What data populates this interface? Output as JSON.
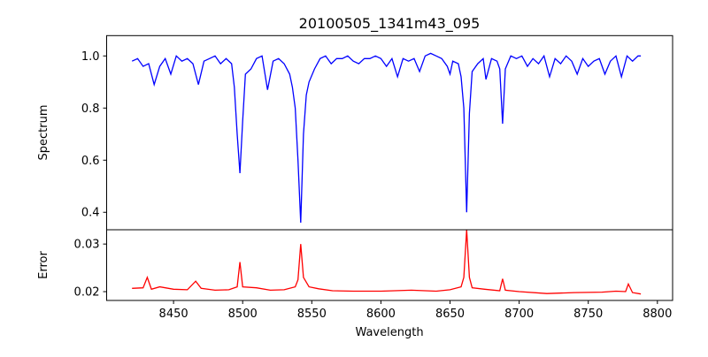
{
  "chart_data": [
    {
      "type": "line",
      "title": "20100505_1341m43_095",
      "xlabel": "",
      "ylabel": "Spectrum",
      "xlim": [
        8401.6,
        8811
      ],
      "ylim": [
        0.333,
        1.078
      ],
      "yticks": [
        "0.4",
        "0.6",
        "0.8",
        "1.0"
      ],
      "grid": false,
      "color": "#0000ff",
      "x": [
        8420,
        8424,
        8428,
        8432,
        8436,
        8440,
        8444,
        8448,
        8452,
        8456,
        8460,
        8464,
        8468,
        8472,
        8476,
        8480,
        8484,
        8488,
        8492,
        8494,
        8496,
        8498,
        8500,
        8502,
        8506,
        8510,
        8514,
        8518,
        8522,
        8526,
        8530,
        8534,
        8536,
        8538,
        8540,
        8542,
        8544,
        8546,
        8548,
        8552,
        8556,
        8560,
        8564,
        8568,
        8572,
        8576,
        8580,
        8584,
        8588,
        8592,
        8596,
        8600,
        8604,
        8608,
        8612,
        8616,
        8620,
        8624,
        8628,
        8632,
        8636,
        8640,
        8644,
        8648,
        8650,
        8652,
        8656,
        8658,
        8660,
        8662,
        8664,
        8666,
        8670,
        8674,
        8676,
        8680,
        8684,
        8686,
        8688,
        8690,
        8694,
        8698,
        8702,
        8706,
        8710,
        8714,
        8718,
        8722,
        8726,
        8730,
        8734,
        8738,
        8742,
        8746,
        8750,
        8754,
        8758,
        8762,
        8766,
        8770,
        8774,
        8778,
        8782,
        8786,
        8788
      ],
      "y": [
        0.98,
        0.99,
        0.96,
        0.97,
        0.89,
        0.96,
        0.99,
        0.93,
        1.0,
        0.98,
        0.99,
        0.97,
        0.89,
        0.98,
        0.99,
        1.0,
        0.97,
        0.99,
        0.97,
        0.88,
        0.7,
        0.55,
        0.75,
        0.93,
        0.95,
        0.99,
        1.0,
        0.87,
        0.98,
        0.99,
        0.97,
        0.93,
        0.88,
        0.8,
        0.6,
        0.36,
        0.7,
        0.85,
        0.9,
        0.95,
        0.99,
        1.0,
        0.97,
        0.99,
        0.99,
        1.0,
        0.98,
        0.97,
        0.99,
        0.99,
        1.0,
        0.99,
        0.96,
        0.99,
        0.92,
        0.99,
        0.98,
        0.99,
        0.94,
        1.0,
        1.01,
        1.0,
        0.99,
        0.96,
        0.93,
        0.98,
        0.97,
        0.92,
        0.8,
        0.4,
        0.78,
        0.94,
        0.97,
        0.99,
        0.91,
        0.99,
        0.98,
        0.95,
        0.74,
        0.95,
        1.0,
        0.99,
        1.0,
        0.96,
        0.99,
        0.97,
        1.0,
        0.92,
        0.99,
        0.97,
        1.0,
        0.98,
        0.93,
        0.99,
        0.96,
        0.98,
        0.99,
        0.93,
        0.98,
        1.0,
        0.92,
        1.0,
        0.98,
        1.0,
        1.0
      ]
    },
    {
      "type": "line",
      "xlabel": "Wavelength",
      "ylabel": "Error",
      "xlim": [
        8401.6,
        8811
      ],
      "ylim": [
        0.01815,
        0.033
      ],
      "xticks": [
        "8450",
        "8500",
        "8550",
        "8600",
        "8650",
        "8700",
        "8750",
        "8800"
      ],
      "yticks": [
        "0.02",
        "0.03"
      ],
      "grid": false,
      "color": "#ff0000",
      "x": [
        8420,
        8428,
        8431,
        8434,
        8440,
        8450,
        8460,
        8466,
        8470,
        8480,
        8490,
        8496,
        8498,
        8500,
        8510,
        8520,
        8530,
        8538,
        8540,
        8542,
        8544,
        8548,
        8555,
        8565,
        8580,
        8600,
        8622,
        8640,
        8650,
        8658,
        8660,
        8662,
        8664,
        8666,
        8675,
        8686,
        8688,
        8690,
        8700,
        8720,
        8740,
        8760,
        8770,
        8777,
        8779,
        8782,
        8788
      ],
      "y": [
        0.0207,
        0.0208,
        0.023,
        0.0205,
        0.021,
        0.0205,
        0.0204,
        0.0222,
        0.0207,
        0.0203,
        0.0204,
        0.021,
        0.0262,
        0.021,
        0.0208,
        0.0203,
        0.0204,
        0.021,
        0.0225,
        0.03,
        0.023,
        0.021,
        0.0206,
        0.0202,
        0.0201,
        0.0201,
        0.0203,
        0.0201,
        0.0204,
        0.021,
        0.023,
        0.033,
        0.023,
        0.0208,
        0.0205,
        0.0202,
        0.0227,
        0.0203,
        0.02,
        0.0196,
        0.0198,
        0.0199,
        0.0201,
        0.02,
        0.0216,
        0.0198,
        0.0195
      ]
    }
  ]
}
